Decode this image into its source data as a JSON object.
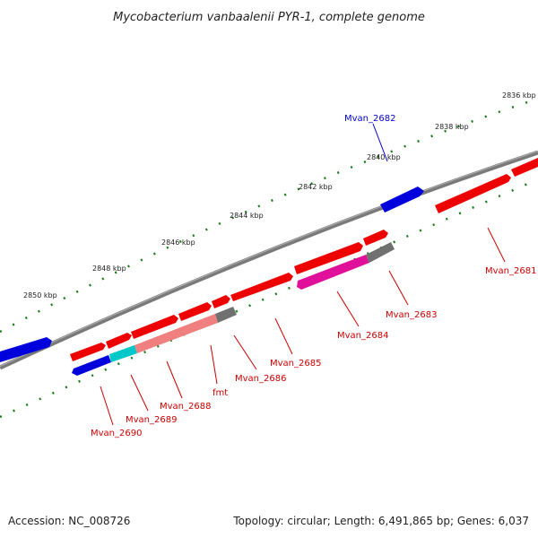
{
  "title": "Mycobacterium vanbaalenii PYR-1, complete genome",
  "footer": {
    "accession": "Accession: NC_008726",
    "topology": "Topology: circular; Length: 6,491,865 bp; Genes: 6,037"
  },
  "colors": {
    "backbone": "#7a7a7a",
    "tick": "#1a7a1a",
    "gene_red": "#ee0000",
    "gene_blue": "#0000dd",
    "gene_cyan": "#00c8c8",
    "gene_pink": "#f08080",
    "gene_gray": "#707070",
    "gene_magenta": "#e0109a",
    "label_red": "#cc0000",
    "label_blue": "#0000cc"
  },
  "ruler_labels": [
    "2836 kbp",
    "2838 kbp",
    "2840 kbp",
    "2842 kbp",
    "2844 kbp",
    "2846 kbp",
    "2848 kbp",
    "2850 kbp"
  ],
  "gene_labels": {
    "mvan_2682": "Mvan_2682",
    "mvan_2681": "Mvan_2681",
    "mvan_2683": "Mvan_2683",
    "mvan_2684": "Mvan_2684",
    "mvan_2685": "Mvan_2685",
    "mvan_2686": "Mvan_2686",
    "fmt": "fmt",
    "mvan_2688": "Mvan_2688",
    "mvan_2689": "Mvan_2689",
    "mvan_2690": "Mvan_2690"
  }
}
